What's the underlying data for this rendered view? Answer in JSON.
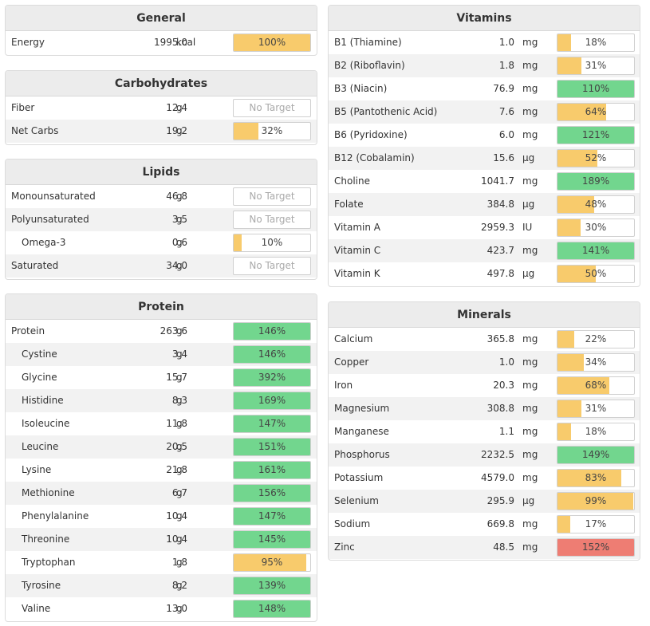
{
  "colors": {
    "yellow": "#f8cb6c",
    "green": "#72d68e",
    "red": "#ee7d73"
  },
  "general": {
    "title": "General",
    "rows": [
      {
        "name": "Energy",
        "amount": "1995.0",
        "unit": "kcal",
        "label": "100%",
        "pct": 100,
        "color": "yellow",
        "indent": false
      }
    ]
  },
  "carbohydrates": {
    "title": "Carbohydrates",
    "rows": [
      {
        "name": "Fiber",
        "amount": "12.4",
        "unit": "g",
        "label": "No Target",
        "pct": null,
        "color": null,
        "indent": false
      },
      {
        "name": "Net Carbs",
        "amount": "19.2",
        "unit": "g",
        "label": "32%",
        "pct": 32,
        "color": "yellow",
        "indent": false
      }
    ]
  },
  "lipids": {
    "title": "Lipids",
    "rows": [
      {
        "name": "Monounsaturated",
        "amount": "46.8",
        "unit": "g",
        "label": "No Target",
        "pct": null,
        "color": null,
        "indent": false
      },
      {
        "name": "Polyunsaturated",
        "amount": "3.5",
        "unit": "g",
        "label": "No Target",
        "pct": null,
        "color": null,
        "indent": false
      },
      {
        "name": "Omega-3",
        "amount": "0.6",
        "unit": "g",
        "label": "10%",
        "pct": 10,
        "color": "yellow",
        "indent": true
      },
      {
        "name": "Saturated",
        "amount": "34.0",
        "unit": "g",
        "label": "No Target",
        "pct": null,
        "color": null,
        "indent": false
      }
    ]
  },
  "protein": {
    "title": "Protein",
    "rows": [
      {
        "name": "Protein",
        "amount": "263.6",
        "unit": "g",
        "label": "146%",
        "pct": 146,
        "color": "green",
        "indent": false
      },
      {
        "name": "Cystine",
        "amount": "3.4",
        "unit": "g",
        "label": "146%",
        "pct": 146,
        "color": "green",
        "indent": true
      },
      {
        "name": "Glycine",
        "amount": "15.7",
        "unit": "g",
        "label": "392%",
        "pct": 392,
        "color": "green",
        "indent": true
      },
      {
        "name": "Histidine",
        "amount": "8.3",
        "unit": "g",
        "label": "169%",
        "pct": 169,
        "color": "green",
        "indent": true
      },
      {
        "name": "Isoleucine",
        "amount": "11.8",
        "unit": "g",
        "label": "147%",
        "pct": 147,
        "color": "green",
        "indent": true
      },
      {
        "name": "Leucine",
        "amount": "20.5",
        "unit": "g",
        "label": "151%",
        "pct": 151,
        "color": "green",
        "indent": true
      },
      {
        "name": "Lysine",
        "amount": "21.8",
        "unit": "g",
        "label": "161%",
        "pct": 161,
        "color": "green",
        "indent": true
      },
      {
        "name": "Methionine",
        "amount": "6.7",
        "unit": "g",
        "label": "156%",
        "pct": 156,
        "color": "green",
        "indent": true
      },
      {
        "name": "Phenylalanine",
        "amount": "10.4",
        "unit": "g",
        "label": "147%",
        "pct": 147,
        "color": "green",
        "indent": true
      },
      {
        "name": "Threonine",
        "amount": "10.4",
        "unit": "g",
        "label": "145%",
        "pct": 145,
        "color": "green",
        "indent": true
      },
      {
        "name": "Tryptophan",
        "amount": "1.8",
        "unit": "g",
        "label": "95%",
        "pct": 95,
        "color": "yellow",
        "indent": true
      },
      {
        "name": "Tyrosine",
        "amount": "8.2",
        "unit": "g",
        "label": "139%",
        "pct": 139,
        "color": "green",
        "indent": true
      },
      {
        "name": "Valine",
        "amount": "13.0",
        "unit": "g",
        "label": "148%",
        "pct": 148,
        "color": "green",
        "indent": true
      }
    ]
  },
  "vitamins": {
    "title": "Vitamins",
    "rows": [
      {
        "name": "B1 (Thiamine)",
        "amount": "1.0",
        "unit": "mg",
        "label": "18%",
        "pct": 18,
        "color": "yellow",
        "indent": false
      },
      {
        "name": "B2 (Riboflavin)",
        "amount": "1.8",
        "unit": "mg",
        "label": "31%",
        "pct": 31,
        "color": "yellow",
        "indent": false
      },
      {
        "name": "B3 (Niacin)",
        "amount": "76.9",
        "unit": "mg",
        "label": "110%",
        "pct": 110,
        "color": "green",
        "indent": false
      },
      {
        "name": "B5 (Pantothenic Acid)",
        "amount": "7.6",
        "unit": "mg",
        "label": "64%",
        "pct": 64,
        "color": "yellow",
        "indent": false
      },
      {
        "name": "B6 (Pyridoxine)",
        "amount": "6.0",
        "unit": "mg",
        "label": "121%",
        "pct": 121,
        "color": "green",
        "indent": false
      },
      {
        "name": "B12 (Cobalamin)",
        "amount": "15.6",
        "unit": "µg",
        "label": "52%",
        "pct": 52,
        "color": "yellow",
        "indent": false
      },
      {
        "name": "Choline",
        "amount": "1041.7",
        "unit": "mg",
        "label": "189%",
        "pct": 189,
        "color": "green",
        "indent": false
      },
      {
        "name": "Folate",
        "amount": "384.8",
        "unit": "µg",
        "label": "48%",
        "pct": 48,
        "color": "yellow",
        "indent": false
      },
      {
        "name": "Vitamin A",
        "amount": "2959.3",
        "unit": "IU",
        "label": "30%",
        "pct": 30,
        "color": "yellow",
        "indent": false
      },
      {
        "name": "Vitamin C",
        "amount": "423.7",
        "unit": "mg",
        "label": "141%",
        "pct": 141,
        "color": "green",
        "indent": false
      },
      {
        "name": "Vitamin K",
        "amount": "497.8",
        "unit": "µg",
        "label": "50%",
        "pct": 50,
        "color": "yellow",
        "indent": false
      }
    ]
  },
  "minerals": {
    "title": "Minerals",
    "rows": [
      {
        "name": "Calcium",
        "amount": "365.8",
        "unit": "mg",
        "label": "22%",
        "pct": 22,
        "color": "yellow",
        "indent": false
      },
      {
        "name": "Copper",
        "amount": "1.0",
        "unit": "mg",
        "label": "34%",
        "pct": 34,
        "color": "yellow",
        "indent": false
      },
      {
        "name": "Iron",
        "amount": "20.3",
        "unit": "mg",
        "label": "68%",
        "pct": 68,
        "color": "yellow",
        "indent": false
      },
      {
        "name": "Magnesium",
        "amount": "308.8",
        "unit": "mg",
        "label": "31%",
        "pct": 31,
        "color": "yellow",
        "indent": false
      },
      {
        "name": "Manganese",
        "amount": "1.1",
        "unit": "mg",
        "label": "18%",
        "pct": 18,
        "color": "yellow",
        "indent": false
      },
      {
        "name": "Phosphorus",
        "amount": "2232.5",
        "unit": "mg",
        "label": "149%",
        "pct": 149,
        "color": "green",
        "indent": false
      },
      {
        "name": "Potassium",
        "amount": "4579.0",
        "unit": "mg",
        "label": "83%",
        "pct": 83,
        "color": "yellow",
        "indent": false
      },
      {
        "name": "Selenium",
        "amount": "295.9",
        "unit": "µg",
        "label": "99%",
        "pct": 99,
        "color": "yellow",
        "indent": false
      },
      {
        "name": "Sodium",
        "amount": "669.8",
        "unit": "mg",
        "label": "17%",
        "pct": 17,
        "color": "yellow",
        "indent": false
      },
      {
        "name": "Zinc",
        "amount": "48.5",
        "unit": "mg",
        "label": "152%",
        "pct": 152,
        "color": "red",
        "indent": false
      }
    ]
  }
}
